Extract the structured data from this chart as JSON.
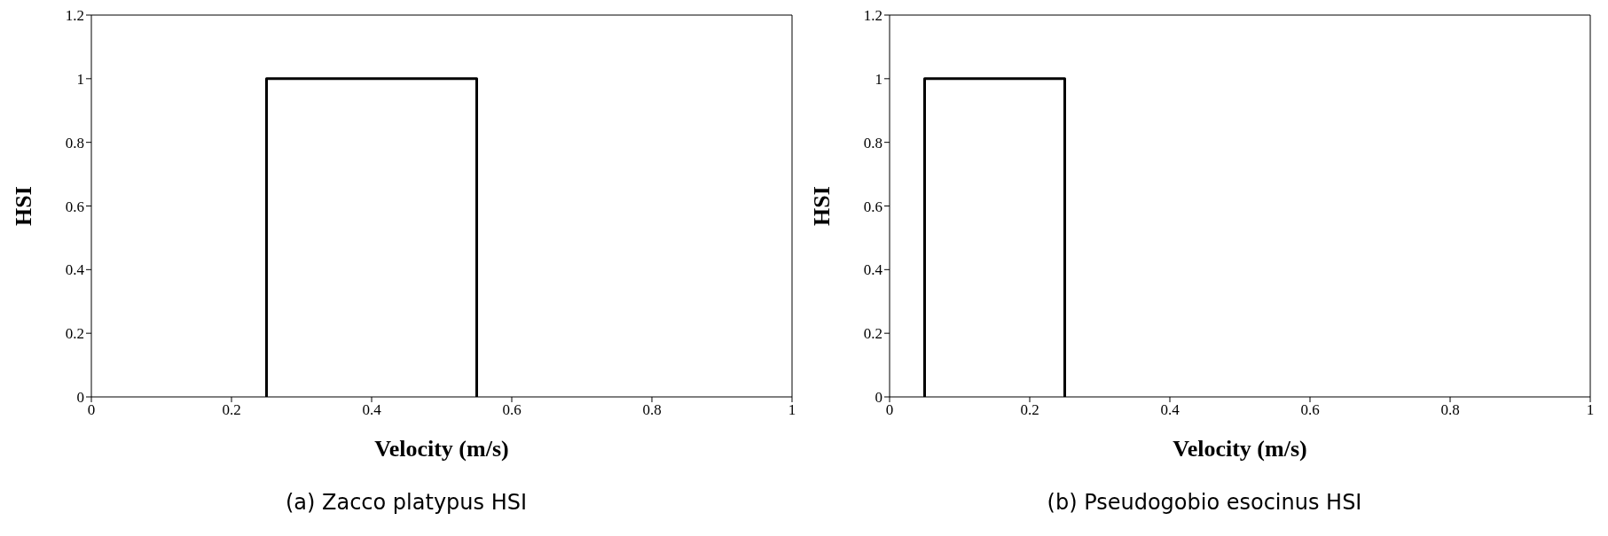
{
  "chart_data": [
    {
      "type": "line",
      "title": "(a) Zacco platypus HSI",
      "xlabel": "Velocity (m/s)",
      "ylabel": "HSI",
      "x": [
        0.25,
        0.25,
        0.55,
        0.55
      ],
      "values": [
        0,
        1,
        1,
        0
      ],
      "color": "#000000",
      "marker": "none",
      "xlim": [
        0,
        1
      ],
      "xticks": [
        0,
        0.2,
        0.4,
        0.6,
        0.8,
        1
      ],
      "ylim": [
        0,
        1.2
      ],
      "yticks": [
        0,
        0.2,
        0.4,
        0.6,
        0.8,
        1,
        1.2
      ]
    },
    {
      "type": "line",
      "title": "(b) Pseudogobio esocinus HSI",
      "xlabel": "Velocity (m/s)",
      "ylabel": "HSI",
      "x": [
        0.05,
        0.05,
        0.25,
        0.25
      ],
      "values": [
        0,
        1,
        1,
        0
      ],
      "color": "#000000",
      "marker": "none",
      "xlim": [
        0,
        1
      ],
      "xticks": [
        0,
        0.2,
        0.4,
        0.6,
        0.8,
        1
      ],
      "ylim": [
        0,
        1.2
      ],
      "yticks": [
        0,
        0.2,
        0.4,
        0.6,
        0.8,
        1,
        1.2
      ]
    }
  ]
}
